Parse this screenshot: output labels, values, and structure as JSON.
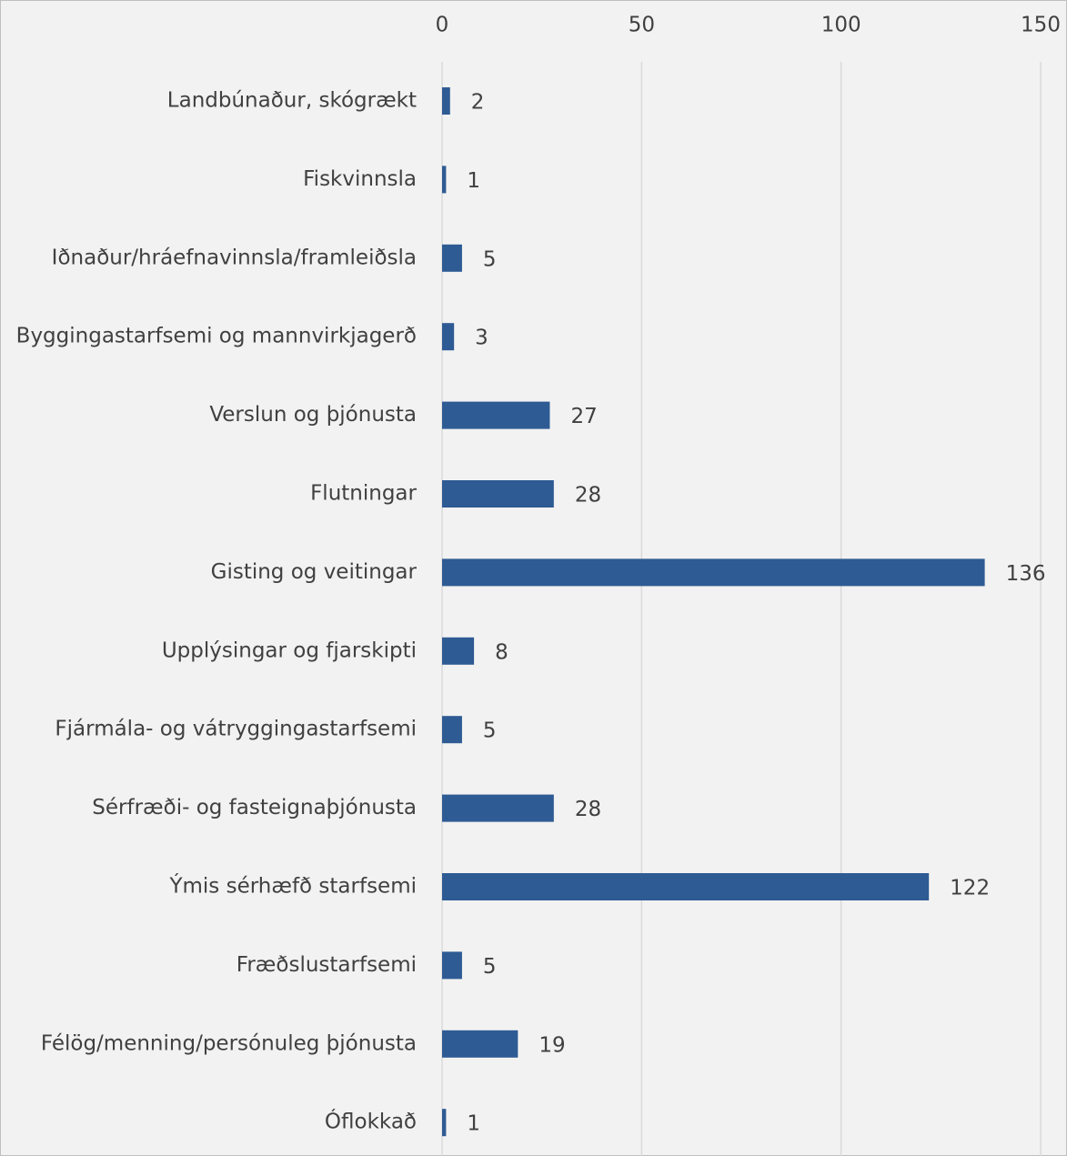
{
  "chart_data": {
    "type": "bar",
    "orientation": "horizontal",
    "categories": [
      "Landbúnaður, skógrækt",
      "Fiskvinnsla",
      "Iðnaður/hráefnavinnsla/framleiðsla",
      "Byggingastarfsemi og mannvirkjagerð",
      "Verslun og þjónusta",
      "Flutningar",
      "Gisting og veitingar",
      "Upplýsingar og fjarskipti",
      "Fjármála- og vátryggingastarfsemi",
      "Sérfræði- og fasteignaþjónusta",
      "Ýmis sérhæfð starfsemi",
      "Fræðslustarfsemi",
      "Félög/menning/persónuleg þjónusta",
      "Óflokkað"
    ],
    "values": [
      2,
      1,
      5,
      3,
      27,
      28,
      136,
      8,
      5,
      28,
      122,
      5,
      19,
      1
    ],
    "color": "#2e5b93",
    "xlim": [
      0,
      150
    ],
    "xticks": [
      0,
      50,
      100,
      150
    ],
    "grid": true
  }
}
